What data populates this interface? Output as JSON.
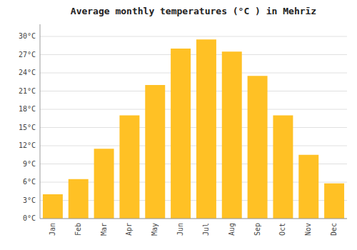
{
  "chart_data": {
    "type": "bar",
    "title": "Average monthly temperatures (°C ) in Mehrīz",
    "categories": [
      "Jan",
      "Feb",
      "Mar",
      "Apr",
      "May",
      "Jun",
      "Jul",
      "Aug",
      "Sep",
      "Oct",
      "Nov",
      "Dec"
    ],
    "values": [
      4.0,
      6.5,
      11.5,
      17.0,
      22.0,
      28.0,
      29.5,
      27.5,
      23.5,
      17.0,
      10.5,
      5.8
    ],
    "color": "#FFC125",
    "ylim": [
      0,
      32
    ],
    "yticks": [
      {
        "value": 0,
        "label": "0°C"
      },
      {
        "value": 3,
        "label": "3°C"
      },
      {
        "value": 6,
        "label": "6°C"
      },
      {
        "value": 9,
        "label": "9°C"
      },
      {
        "value": 12,
        "label": "12°C"
      },
      {
        "value": 15,
        "label": "15°C"
      },
      {
        "value": 18,
        "label": "18°C"
      },
      {
        "value": 21,
        "label": "21°C"
      },
      {
        "value": 24,
        "label": "24°C"
      },
      {
        "value": 27,
        "label": "27°C"
      },
      {
        "value": 30,
        "label": "30°C"
      }
    ],
    "grid": true
  }
}
